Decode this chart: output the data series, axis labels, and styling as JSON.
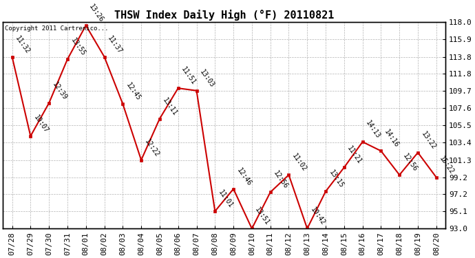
{
  "title": "THSW Index Daily High (°F) 20110821",
  "copyright_text": "Copyright 2011 Cartrenico...",
  "x_labels": [
    "07/28",
    "07/29",
    "07/30",
    "07/31",
    "08/01",
    "08/02",
    "08/03",
    "08/04",
    "08/05",
    "08/06",
    "08/07",
    "08/08",
    "08/09",
    "08/10",
    "08/11",
    "08/12",
    "08/13",
    "08/14",
    "08/15",
    "08/16",
    "08/17",
    "08/18",
    "08/19",
    "08/20"
  ],
  "y_values": [
    113.8,
    104.2,
    108.2,
    113.5,
    117.6,
    113.8,
    108.1,
    101.3,
    106.3,
    110.0,
    109.7,
    95.1,
    97.8,
    93.0,
    97.4,
    99.5,
    93.0,
    97.5,
    100.4,
    103.5,
    102.4,
    99.5,
    102.2,
    99.2
  ],
  "point_labels": [
    "11:32",
    "10:07",
    "12:39",
    "13:55",
    "13:26",
    "11:37",
    "12:45",
    "12:22",
    "13:11",
    "11:51",
    "13:03",
    "11:01",
    "12:46",
    "13:51",
    "12:56",
    "11:02",
    "10:42",
    "13:15",
    "11:21",
    "14:13",
    "14:16",
    "12:56",
    "13:22",
    "15:22"
  ],
  "ylim": [
    93.0,
    118.0
  ],
  "y_ticks": [
    93.0,
    95.1,
    97.2,
    99.2,
    101.3,
    103.4,
    105.5,
    107.6,
    109.7,
    111.8,
    113.8,
    115.9,
    118.0
  ],
  "line_color": "#cc0000",
  "marker_color": "#cc0000",
  "bg_color": "#ffffff",
  "grid_color": "#aaaaaa",
  "title_fontsize": 11,
  "tick_fontsize": 8,
  "annot_fontsize": 7
}
